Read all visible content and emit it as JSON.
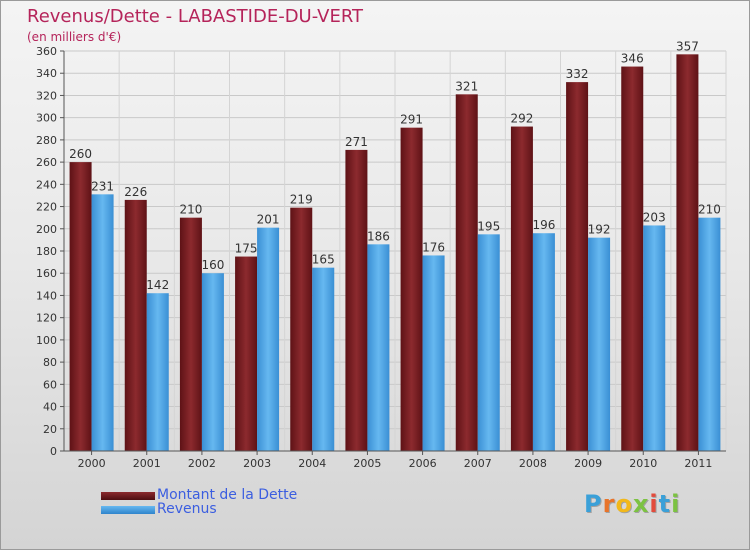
{
  "title": "Revenus/Dette - LABASTIDE-DU-VERT",
  "subtitle": "(en milliers d'€)",
  "colors": {
    "debt": "#7a1e22",
    "revenue": "#4aa3e6",
    "title": "#b5245a",
    "legend_text": "#3b5ee0"
  },
  "legend": [
    {
      "label": "Montant de la Dette",
      "color": "#7a1e22"
    },
    {
      "label": "Revenus",
      "color": "#4aa3e6"
    }
  ],
  "logo": {
    "letters": [
      "P",
      "r",
      "o",
      "x",
      "i",
      "t",
      "i"
    ],
    "colors": [
      "#3aa0d8",
      "#e8742a",
      "#f2b81a",
      "#7cc242",
      "#e24b3c",
      "#3aa0d8",
      "#7cc242"
    ]
  },
  "chart_data": {
    "type": "bar",
    "categories": [
      "2000",
      "2001",
      "2002",
      "2003",
      "2004",
      "2005",
      "2006",
      "2007",
      "2008",
      "2009",
      "2010",
      "2011"
    ],
    "series": [
      {
        "name": "Montant de la Dette",
        "values": [
          260,
          226,
          210,
          175,
          219,
          271,
          291,
          321,
          292,
          332,
          346,
          357
        ]
      },
      {
        "name": "Revenus",
        "values": [
          231,
          142,
          160,
          201,
          165,
          186,
          176,
          195,
          196,
          192,
          203,
          210
        ]
      }
    ],
    "ylim": [
      0,
      360
    ],
    "yticks": [
      0,
      20,
      40,
      60,
      80,
      100,
      120,
      140,
      160,
      180,
      200,
      220,
      240,
      260,
      280,
      300,
      320,
      340,
      360
    ],
    "grid": true,
    "data_labels": true,
    "legend_position": "bottom-left"
  }
}
